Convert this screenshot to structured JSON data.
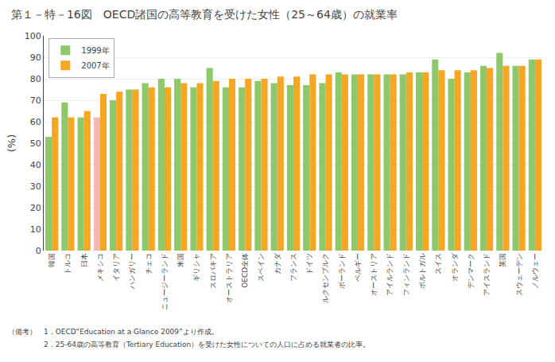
{
  "chart_data": {
    "type": "bar",
    "title": "第１－特－16図　OECD諸国の高等教育を受けた女性（25～64歳）の就業率",
    "ylabel": "(%)",
    "ylim": [
      0,
      100
    ],
    "yticks": [
      0,
      10,
      20,
      30,
      40,
      50,
      60,
      70,
      80,
      90,
      100
    ],
    "grid": true,
    "legend": "upper left",
    "categories": [
      "韓国",
      "トルコ",
      "日本",
      "メキシコ",
      "イタリア",
      "ハンガリー",
      "チェコ",
      "ニュージーランド",
      "米国",
      "ギリシャ",
      "スロバキア",
      "オーストラリア",
      "OECD全体",
      "スペイン",
      "カナダ",
      "フランス",
      "ドイツ",
      "ルクセンブルク",
      "ポーランド",
      "ベルギー",
      "オーストリア",
      "アイルランド",
      "フィンランド",
      "ポルトガル",
      "スイス",
      "オランダ",
      "デンマーク",
      "アイスランド",
      "英国",
      "スウェーデン",
      "ノルウェー"
    ],
    "series": [
      {
        "name": "1999年",
        "colors": [
          "#8dc86a",
          "#8dc86a",
          "#8dc86a",
          "#f4b8b8",
          "#8dc86a",
          "#8dc86a",
          "#8dc86a",
          "#8dc86a",
          "#8dc86a",
          "#8dc86a",
          "#8dc86a",
          "#8dc86a",
          "#8dc86a",
          "#8dc86a",
          "#8dc86a",
          "#8dc86a",
          "#8dc86a",
          "#8dc86a",
          "#8dc86a",
          "#8dc86a",
          "#8dc86a",
          "#8dc86a",
          "#8dc86a",
          "#8dc86a",
          "#8dc86a",
          "#8dc86a",
          "#8dc86a",
          "#8dc86a",
          "#8dc86a",
          "#8dc86a",
          "#8dc86a"
        ],
        "values": [
          53,
          69,
          62,
          62,
          70,
          75,
          78,
          80,
          80,
          76,
          85,
          76,
          76,
          79,
          78,
          77,
          77,
          78,
          83,
          82,
          82,
          82,
          82,
          83,
          89,
          80,
          83,
          86,
          92,
          86,
          89
        ]
      },
      {
        "name": "2007年",
        "color": "#f5a623",
        "values": [
          62,
          62,
          65,
          73,
          74,
          75,
          76,
          76,
          78,
          78,
          79,
          80,
          80,
          80,
          81,
          81,
          82,
          82,
          82,
          82,
          82,
          82,
          83,
          83,
          84,
          84,
          84,
          85,
          86,
          86,
          89
        ]
      }
    ],
    "annotations": [
      "（備考）　1．OECD“Education at a Glance 2009”より作成。",
      "　　　　　2．25-64歳の高等教育（Tertiary Education）を受けた女性についての人口に占める就業者の比率。"
    ]
  }
}
